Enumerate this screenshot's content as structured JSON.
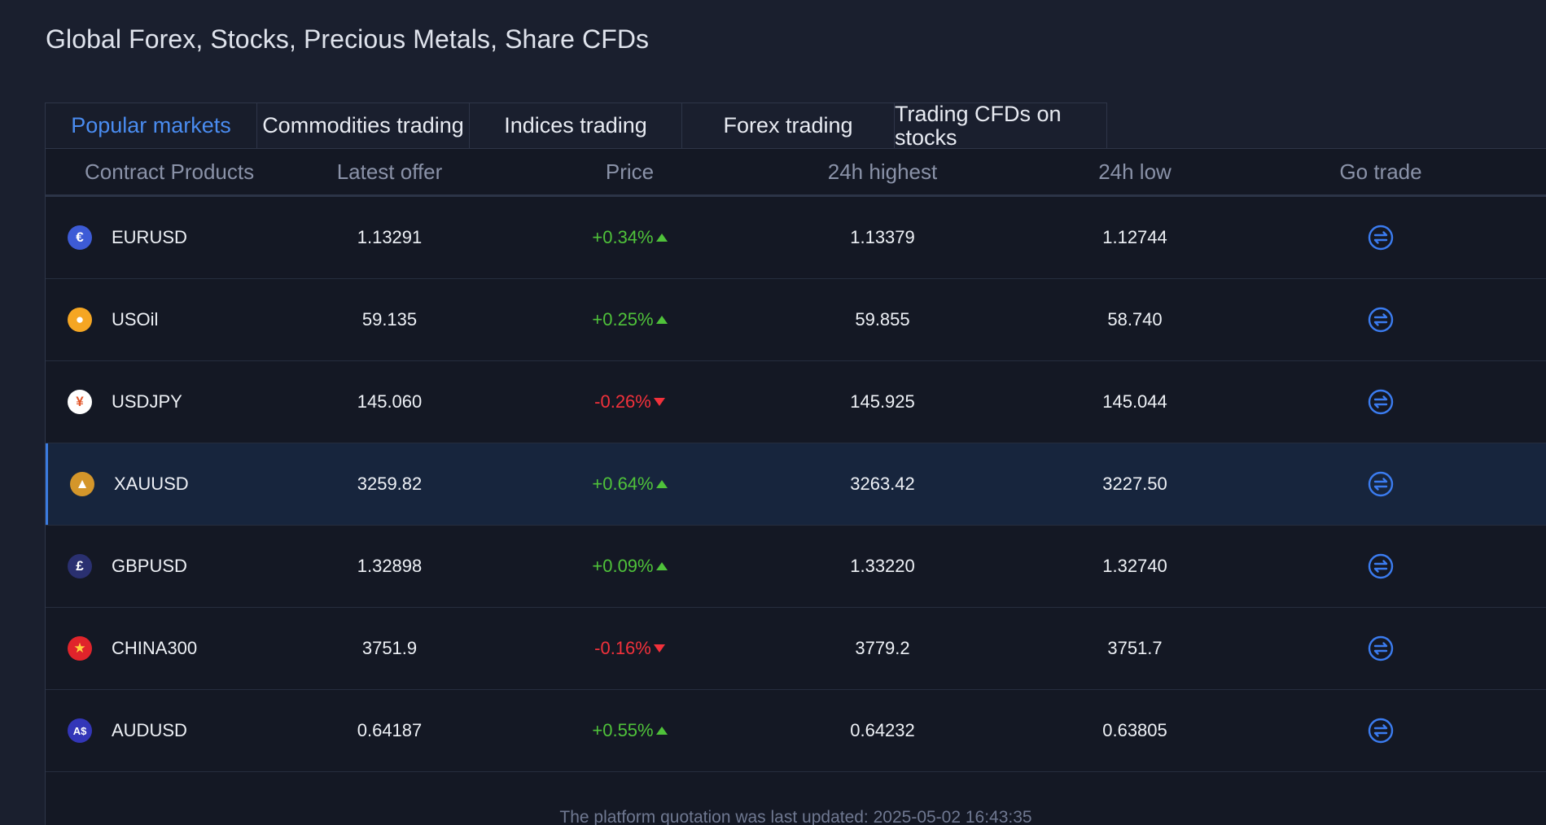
{
  "title": "Global Forex, Stocks, Precious Metals, Share CFDs",
  "tabs": [
    {
      "label": "Popular markets",
      "active": true
    },
    {
      "label": "Commodities trading",
      "active": false
    },
    {
      "label": "Indices trading",
      "active": false
    },
    {
      "label": "Forex trading",
      "active": false
    },
    {
      "label": "Trading CFDs on stocks",
      "active": false
    }
  ],
  "columns": [
    "Contract Products",
    "Latest offer",
    "Price",
    "24h highest",
    "24h low",
    "Go trade"
  ],
  "rows": [
    {
      "symbol": "EURUSD",
      "icon": "euro-icon",
      "glyph": "€",
      "icon_bg": "#3d5bd6",
      "icon_fg": "#ffffff",
      "offer": "1.13291",
      "change": "+0.34%",
      "direction": "up",
      "high": "1.13379",
      "low": "1.12744"
    },
    {
      "symbol": "USOil",
      "icon": "oil-drop-icon",
      "glyph": "●",
      "icon_bg": "#f5a623",
      "icon_fg": "#ffffff",
      "offer": "59.135",
      "change": "+0.25%",
      "direction": "up",
      "high": "59.855",
      "low": "58.740"
    },
    {
      "symbol": "USDJPY",
      "icon": "yen-icon",
      "glyph": "¥",
      "icon_bg": "#ffffff",
      "icon_fg": "#e2572b",
      "offer": "145.060",
      "change": "-0.26%",
      "direction": "down",
      "high": "145.925",
      "low": "145.044"
    },
    {
      "symbol": "XAUUSD",
      "icon": "gold-bars-icon",
      "glyph": "▲",
      "icon_bg": "#d4962a",
      "icon_fg": "#ffffff",
      "offer": "3259.82",
      "change": "+0.64%",
      "direction": "up",
      "high": "3263.42",
      "low": "3227.50",
      "highlight": true
    },
    {
      "symbol": "GBPUSD",
      "icon": "pound-icon",
      "glyph": "£",
      "icon_bg": "#2a3070",
      "icon_fg": "#ffffff",
      "offer": "1.32898",
      "change": "+0.09%",
      "direction": "up",
      "high": "1.33220",
      "low": "1.32740"
    },
    {
      "symbol": "CHINA300",
      "icon": "china-flag-icon",
      "glyph": "★",
      "icon_bg": "#e0242b",
      "icon_fg": "#ffd23f",
      "offer": "3751.9",
      "change": "-0.16%",
      "direction": "down",
      "high": "3779.2",
      "low": "3751.7"
    },
    {
      "symbol": "AUDUSD",
      "icon": "aud-icon",
      "glyph": "A$",
      "icon_bg": "#3336b8",
      "icon_fg": "#ffffff",
      "offer": "0.64187",
      "change": "+0.55%",
      "direction": "up",
      "high": "0.64232",
      "low": "0.63805"
    }
  ],
  "footer": "The platform quotation was last updated: 2025-05-02 16:43:35",
  "colors": {
    "accent": "#4a8cf0",
    "up": "#4fc23a",
    "down": "#f2313b",
    "trade_icon": "#3b7cf0"
  }
}
